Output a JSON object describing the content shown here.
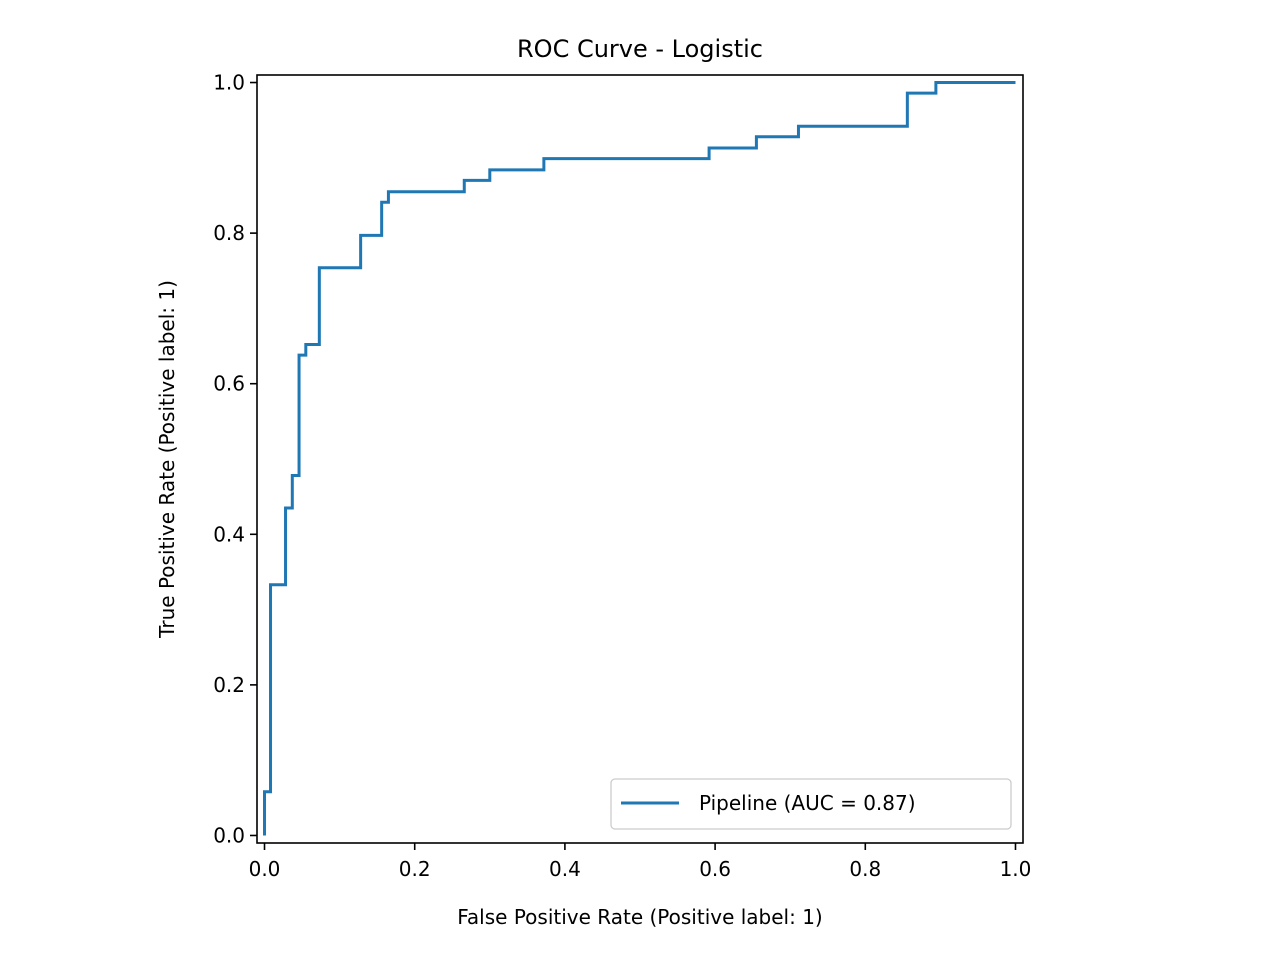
{
  "chart_data": {
    "type": "line",
    "title": "ROC Curve - Logistic",
    "xlabel": "False Positive Rate (Positive label: 1)",
    "ylabel": "True Positive Rate (Positive label: 1)",
    "xlim": [
      -0.01,
      1.01
    ],
    "ylim": [
      -0.01,
      1.01
    ],
    "xticks": [
      0.0,
      0.2,
      0.4,
      0.6,
      0.8,
      1.0
    ],
    "xtick_labels": [
      "0.0",
      "0.2",
      "0.4",
      "0.6",
      "0.8",
      "1.0"
    ],
    "yticks": [
      0.0,
      0.2,
      0.4,
      0.6,
      0.8,
      1.0
    ],
    "ytick_labels": [
      "0.0",
      "0.2",
      "0.4",
      "0.6",
      "0.8",
      "1.0"
    ],
    "grid": false,
    "legend_position": "lower-right",
    "series": [
      {
        "name": "Pipeline (AUC = 0.87)",
        "color": "#1f77b4",
        "drawstyle": "steps-post",
        "x": [
          0.0,
          0.0,
          0.008,
          0.008,
          0.028,
          0.028,
          0.037,
          0.037,
          0.046,
          0.046,
          0.055,
          0.055,
          0.073,
          0.073,
          0.128,
          0.128,
          0.156,
          0.156,
          0.165,
          0.165,
          0.266,
          0.266,
          0.3,
          0.3,
          0.372,
          0.372,
          0.592,
          0.592,
          0.655,
          0.655,
          0.711,
          0.711,
          0.856,
          0.856,
          0.894,
          0.894,
          1.0
        ],
        "y": [
          0.0,
          0.058,
          0.058,
          0.333,
          0.333,
          0.435,
          0.435,
          0.478,
          0.478,
          0.638,
          0.638,
          0.652,
          0.652,
          0.754,
          0.754,
          0.797,
          0.797,
          0.841,
          0.841,
          0.855,
          0.855,
          0.87,
          0.87,
          0.884,
          0.884,
          0.899,
          0.899,
          0.913,
          0.913,
          0.928,
          0.928,
          0.942,
          0.942,
          0.986,
          0.986,
          1.0,
          1.0
        ]
      }
    ]
  }
}
